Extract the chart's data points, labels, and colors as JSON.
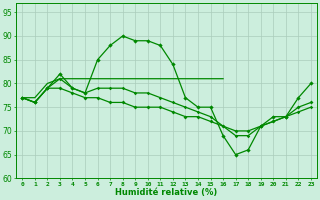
{
  "title": "",
  "xlabel": "Humidité relative (%)",
  "ylabel": "",
  "xlim": [
    -0.5,
    23.5
  ],
  "ylim": [
    60,
    97
  ],
  "yticks": [
    60,
    65,
    70,
    75,
    80,
    85,
    90,
    95
  ],
  "xticks": [
    0,
    1,
    2,
    3,
    4,
    5,
    6,
    7,
    8,
    9,
    10,
    11,
    12,
    13,
    14,
    15,
    16,
    17,
    18,
    19,
    20,
    21,
    22,
    23
  ],
  "bg_color": "#cceedd",
  "grid_color": "#aaccbb",
  "line_color": "#008800",
  "line1": [
    77,
    76,
    79,
    82,
    79,
    78,
    85,
    88,
    90,
    89,
    89,
    88,
    84,
    77,
    75,
    75,
    69,
    65,
    66,
    71,
    73,
    73,
    77,
    80
  ],
  "line2": [
    77,
    77,
    80,
    81,
    81,
    81,
    81,
    81,
    81,
    81,
    81,
    81,
    81,
    81,
    81,
    81,
    81,
    null,
    null,
    null,
    null,
    null,
    null,
    null
  ],
  "line3": [
    77,
    76,
    79,
    79,
    78,
    77,
    77,
    76,
    76,
    75,
    75,
    75,
    74,
    73,
    73,
    72,
    71,
    70,
    70,
    71,
    72,
    73,
    75,
    76
  ],
  "line4": [
    77,
    76,
    79,
    81,
    79,
    78,
    79,
    79,
    79,
    78,
    78,
    77,
    76,
    75,
    74,
    73,
    71,
    69,
    69,
    71,
    72,
    73,
    74,
    75
  ]
}
